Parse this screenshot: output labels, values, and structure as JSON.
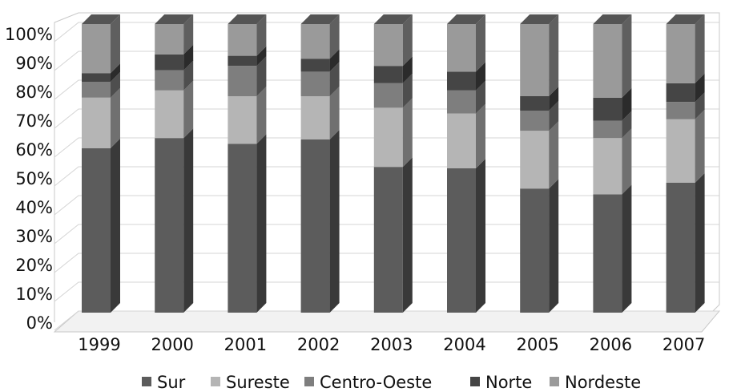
{
  "chart_data": {
    "type": "bar",
    "stacked": true,
    "percent_stacked": true,
    "three_d": true,
    "categories": [
      "1999",
      "2000",
      "2001",
      "2002",
      "2003",
      "2004",
      "2005",
      "2006",
      "2007"
    ],
    "series": [
      {
        "name": "Sur",
        "color": "#5c5c5c",
        "values": [
          57,
          60.5,
          58.5,
          60,
          50.5,
          50,
          43,
          41,
          45
        ]
      },
      {
        "name": "Sureste",
        "color": "#b5b5b5",
        "values": [
          17.5,
          16.5,
          16.5,
          15,
          20.5,
          19,
          20,
          19.5,
          22
        ]
      },
      {
        "name": "Centro-Oeste",
        "color": "#7e7e7e",
        "values": [
          5.5,
          7,
          10.5,
          8.5,
          8.5,
          8,
          7,
          6,
          6
        ]
      },
      {
        "name": "Norte",
        "color": "#454545",
        "values": [
          3,
          5.5,
          3.5,
          4.5,
          6,
          6.5,
          5,
          8,
          6.5
        ]
      },
      {
        "name": "Nordeste",
        "color": "#9a9a9a",
        "values": [
          17,
          10.5,
          11,
          12,
          14.5,
          16.5,
          25,
          25.5,
          20.5
        ]
      }
    ],
    "yticks": [
      "0%",
      "10%",
      "20%",
      "30%",
      "40%",
      "50%",
      "60%",
      "70%",
      "80%",
      "90%",
      "100%"
    ],
    "ylim": [
      0,
      100
    ],
    "grid": true,
    "legend_position": "bottom"
  }
}
